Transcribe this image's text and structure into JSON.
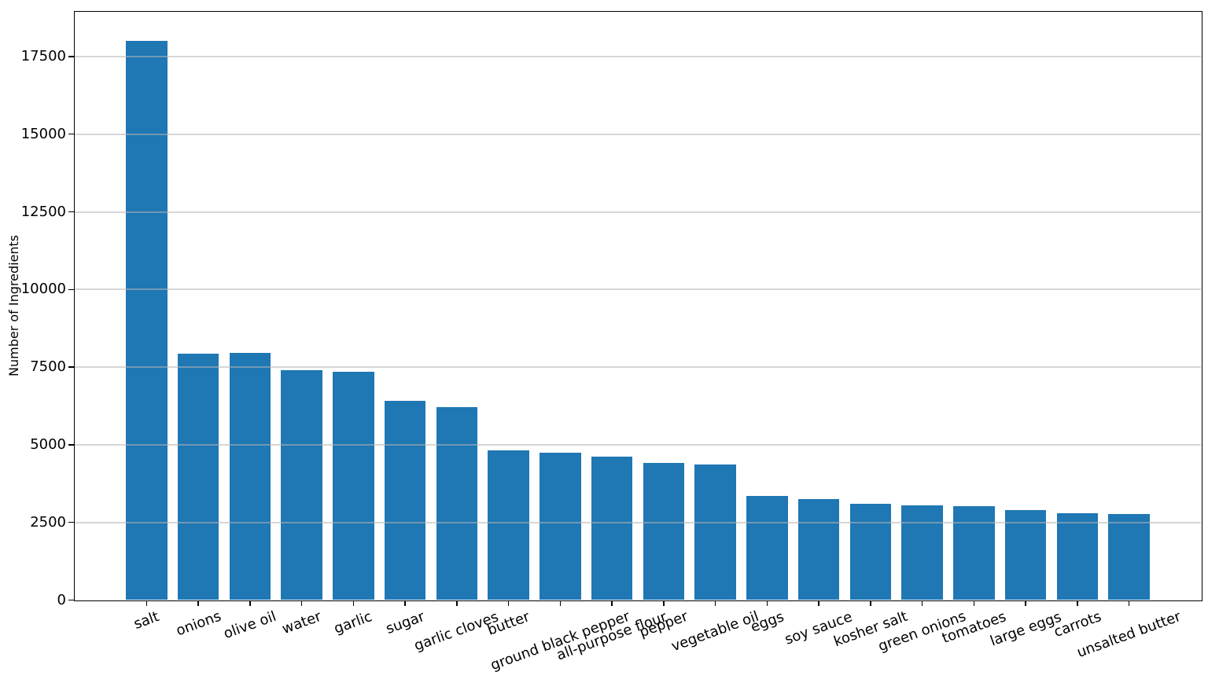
{
  "chart_data": {
    "type": "bar",
    "title": "",
    "xlabel": "",
    "ylabel": "Number of Ingredients",
    "categories": [
      "salt",
      "onions",
      "olive oil",
      "water",
      "garlic",
      "sugar",
      "garlic cloves",
      "butter",
      "ground black pepper",
      "all-purpose flour",
      "pepper",
      "vegetable oil",
      "eggs",
      "soy sauce",
      "kosher salt",
      "green onions",
      "tomatoes",
      "large eggs",
      "carrots",
      "unsalted butter"
    ],
    "values": [
      18000,
      7940,
      7960,
      7400,
      7340,
      6410,
      6200,
      4810,
      4750,
      4620,
      4420,
      4360,
      3350,
      3260,
      3100,
      3040,
      3030,
      2900,
      2800,
      2780
    ],
    "yticks": [
      0,
      2500,
      5000,
      7500,
      10000,
      12500,
      15000,
      17500
    ],
    "ylim": [
      0,
      18940
    ],
    "grid": "y-only",
    "grid_position": "above-bars",
    "legend": "none",
    "bar_color": "#1f77b4",
    "grid_color_rgba": "rgba(180,180,180,0.55)",
    "axis_color": "#000000",
    "xtick_rotation_deg": 20
  }
}
